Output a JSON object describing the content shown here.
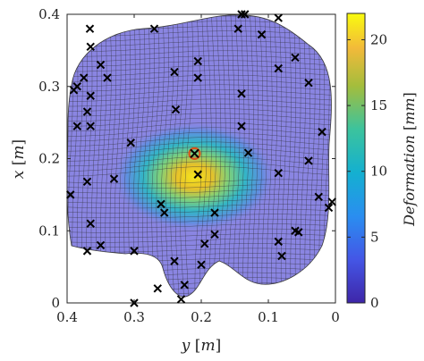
{
  "chart_data": {
    "type": "surface-heatmap",
    "xlabel": "y [m]",
    "ylabel": "x [m]",
    "x_axis_reversed": true,
    "xlim": [
      0.4,
      0
    ],
    "ylim": [
      0,
      0.4
    ],
    "xticks": [
      "0.4",
      "0.3",
      "0.2",
      "0.1",
      "0"
    ],
    "yticks": [
      "0",
      "0.1",
      "0.2",
      "0.3",
      "0.4"
    ],
    "colorbar": {
      "label": "Deformation [mm]",
      "range": [
        0,
        22
      ],
      "ticks": [
        "0",
        "5",
        "10",
        "15",
        "20"
      ],
      "colormap": "parula"
    },
    "peak": {
      "y": 0.21,
      "x": 0.207,
      "deformation_mm": 22
    },
    "sensor_points": [
      [
        0.366,
        0.38
      ],
      [
        0.27,
        0.38
      ],
      [
        0.24,
        0.32
      ],
      [
        0.205,
        0.335
      ],
      [
        0.205,
        0.312
      ],
      [
        0.14,
        0.4
      ],
      [
        0.135,
        0.4
      ],
      [
        0.11,
        0.372
      ],
      [
        0.085,
        0.395
      ],
      [
        0.145,
        0.38
      ],
      [
        0.365,
        0.355
      ],
      [
        0.35,
        0.33
      ],
      [
        0.34,
        0.312
      ],
      [
        0.375,
        0.312
      ],
      [
        0.365,
        0.287
      ],
      [
        0.39,
        0.295
      ],
      [
        0.385,
        0.3
      ],
      [
        0.085,
        0.325
      ],
      [
        0.06,
        0.34
      ],
      [
        0.04,
        0.305
      ],
      [
        0.14,
        0.29
      ],
      [
        0.37,
        0.265
      ],
      [
        0.238,
        0.268
      ],
      [
        0.14,
        0.245
      ],
      [
        0.385,
        0.245
      ],
      [
        0.365,
        0.245
      ],
      [
        0.305,
        0.222
      ],
      [
        0.02,
        0.237
      ],
      [
        0.13,
        0.208
      ],
      [
        0.04,
        0.197
      ],
      [
        0.205,
        0.178
      ],
      [
        0.085,
        0.18
      ],
      [
        0.395,
        0.15
      ],
      [
        0.37,
        0.168
      ],
      [
        0.33,
        0.172
      ],
      [
        0.26,
        0.137
      ],
      [
        0.255,
        0.125
      ],
      [
        0.18,
        0.125
      ],
      [
        0.025,
        0.147
      ],
      [
        0.005,
        0.14
      ],
      [
        0.01,
        0.132
      ],
      [
        0.365,
        0.11
      ],
      [
        0.35,
        0.08
      ],
      [
        0.37,
        0.072
      ],
      [
        0.3,
        0.072
      ],
      [
        0.18,
        0.095
      ],
      [
        0.195,
        0.082
      ],
      [
        0.06,
        0.1
      ],
      [
        0.055,
        0.098
      ],
      [
        0.085,
        0.085
      ],
      [
        0.08,
        0.065
      ],
      [
        0.24,
        0.058
      ],
      [
        0.2,
        0.053
      ],
      [
        0.225,
        0.025
      ],
      [
        0.265,
        0.02
      ],
      [
        0.23,
        0.005
      ],
      [
        0.3,
        0.0
      ]
    ],
    "sensor_marker": "x"
  }
}
